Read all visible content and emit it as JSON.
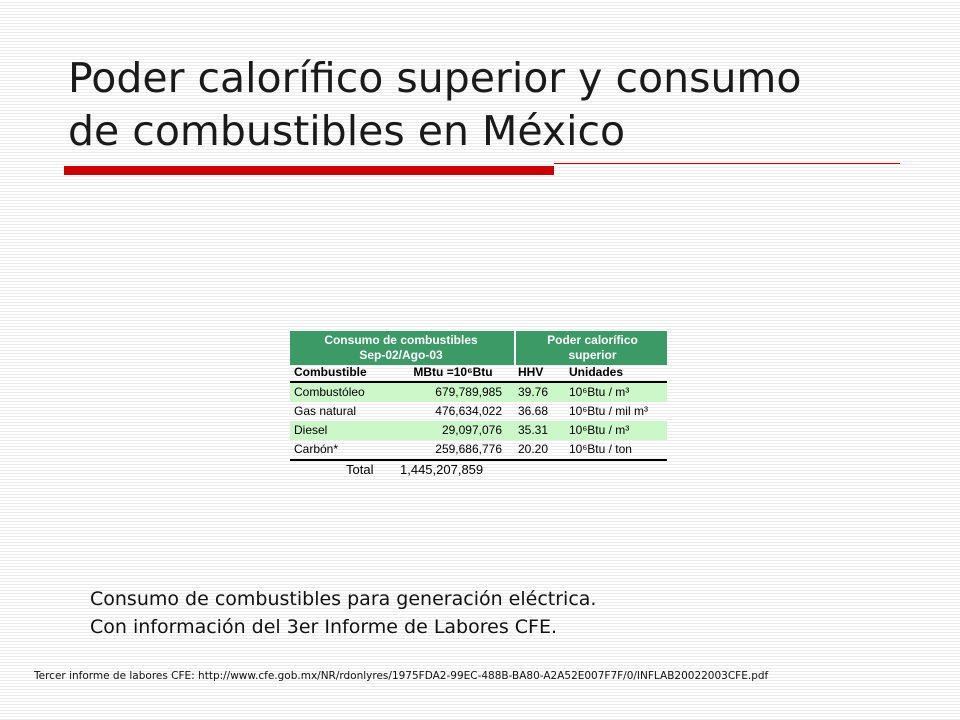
{
  "title": {
    "line1": "Poder calorífico superior y consumo",
    "line2": "de combustibles en México"
  },
  "colors": {
    "accent": "#cc0000",
    "table_header": "#3c9a66",
    "row_highlight": "#ccf7c9"
  },
  "table": {
    "header_left_line1": "Consumo de combustibles",
    "header_left_line2": "Sep-02/Ago-03",
    "header_right_line1": "Poder calorífico",
    "header_right_line2": "superior",
    "col_combustible": "Combustible",
    "col_mbtu": "MBtu =10⁶Btu",
    "col_hhv": "HHV",
    "col_unidades": "Unidades",
    "rows": [
      {
        "name": "Combustóleo",
        "mbtu": "679,789,985",
        "hhv": "39.76",
        "units": "10⁶Btu / m³"
      },
      {
        "name": "Gas natural",
        "mbtu": "476,634,022",
        "hhv": "36.68",
        "units": "10⁶Btu / mil m³"
      },
      {
        "name": "Diesel",
        "mbtu": "29,097,076",
        "hhv": "35.31",
        "units": "10⁶Btu / m³"
      },
      {
        "name": "Carbón*",
        "mbtu": "259,686,776",
        "hhv": "20.20",
        "units": "10⁶Btu / ton"
      }
    ],
    "total_label": "Total",
    "total_value": "1,445,207,859"
  },
  "caption": {
    "line1": "Consumo de combustibles para generación eléctrica.",
    "line2": "Con información del 3er Informe de Labores CFE."
  },
  "source": "Tercer informe de labores CFE: http://www.cfe.gob.mx/NR/rdonlyres/1975FDA2-99EC-488B-BA80-A2A52E007F7F/0/INFLAB20022003CFE.pdf"
}
